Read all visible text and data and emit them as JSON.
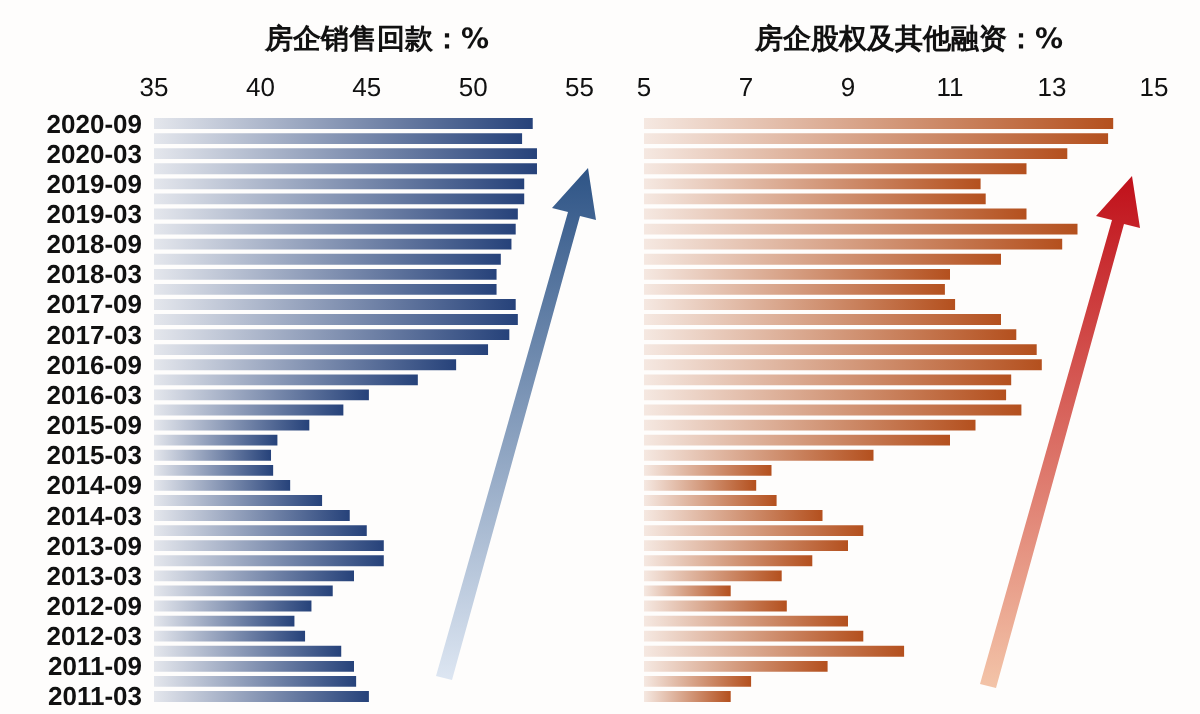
{
  "chart_data": [
    {
      "type": "bar",
      "orientation": "horizontal",
      "title": "房企销售回款：%",
      "categories": [
        "2020-09",
        null,
        "2020-03",
        null,
        "2019-09",
        null,
        "2019-03",
        null,
        "2018-09",
        null,
        "2018-03",
        null,
        "2017-09",
        null,
        "2017-03",
        null,
        "2016-09",
        null,
        "2016-03",
        null,
        "2015-09",
        null,
        "2015-03",
        null,
        "2014-09",
        null,
        "2014-03",
        null,
        "2013-09",
        null,
        "2013-03",
        null,
        "2012-09",
        null,
        "2012-03",
        null,
        "2011-09",
        null,
        "2011-03"
      ],
      "values": [
        52.8,
        52.3,
        53.0,
        53.0,
        52.4,
        52.4,
        52.1,
        52.0,
        51.8,
        51.3,
        51.1,
        51.1,
        52.0,
        52.1,
        51.7,
        50.7,
        49.2,
        47.4,
        45.1,
        43.9,
        42.3,
        40.8,
        40.5,
        40.6,
        41.4,
        42.9,
        44.2,
        45.0,
        45.8,
        45.8,
        44.4,
        43.4,
        42.4,
        41.6,
        42.1,
        43.8,
        44.4,
        44.5,
        45.1
      ],
      "color": "#26427a",
      "xlim": [
        35,
        55
      ],
      "xticks": [
        35,
        40,
        45,
        50,
        55
      ]
    },
    {
      "type": "bar",
      "orientation": "horizontal",
      "title": "房企股权及其他融资：%",
      "categories": [
        "2020-09",
        null,
        "2020-03",
        null,
        "2019-09",
        null,
        "2019-03",
        null,
        "2018-09",
        null,
        "2018-03",
        null,
        "2017-09",
        null,
        "2017-03",
        null,
        "2016-09",
        null,
        "2016-03",
        null,
        "2015-09",
        null,
        "2015-03",
        null,
        "2014-09",
        null,
        "2014-03",
        null,
        "2013-09",
        null,
        "2013-03",
        null,
        "2012-09",
        null,
        "2012-03",
        null,
        "2011-09",
        null,
        "2011-03"
      ],
      "values": [
        14.2,
        14.1,
        13.3,
        12.5,
        11.6,
        11.7,
        12.5,
        13.5,
        13.2,
        12.0,
        11.0,
        10.9,
        11.1,
        12.0,
        12.3,
        12.7,
        12.8,
        12.2,
        12.1,
        12.4,
        11.5,
        11.0,
        9.5,
        7.5,
        7.2,
        7.6,
        8.5,
        9.3,
        9.0,
        8.3,
        7.7,
        6.7,
        7.8,
        9.0,
        9.3,
        10.1,
        8.6,
        7.1,
        6.7
      ],
      "color": "#b4501e",
      "xlim": [
        5,
        15
      ],
      "xticks": [
        5,
        7,
        9,
        11,
        13,
        15
      ],
      "tick_labels": "x"
    }
  ]
}
